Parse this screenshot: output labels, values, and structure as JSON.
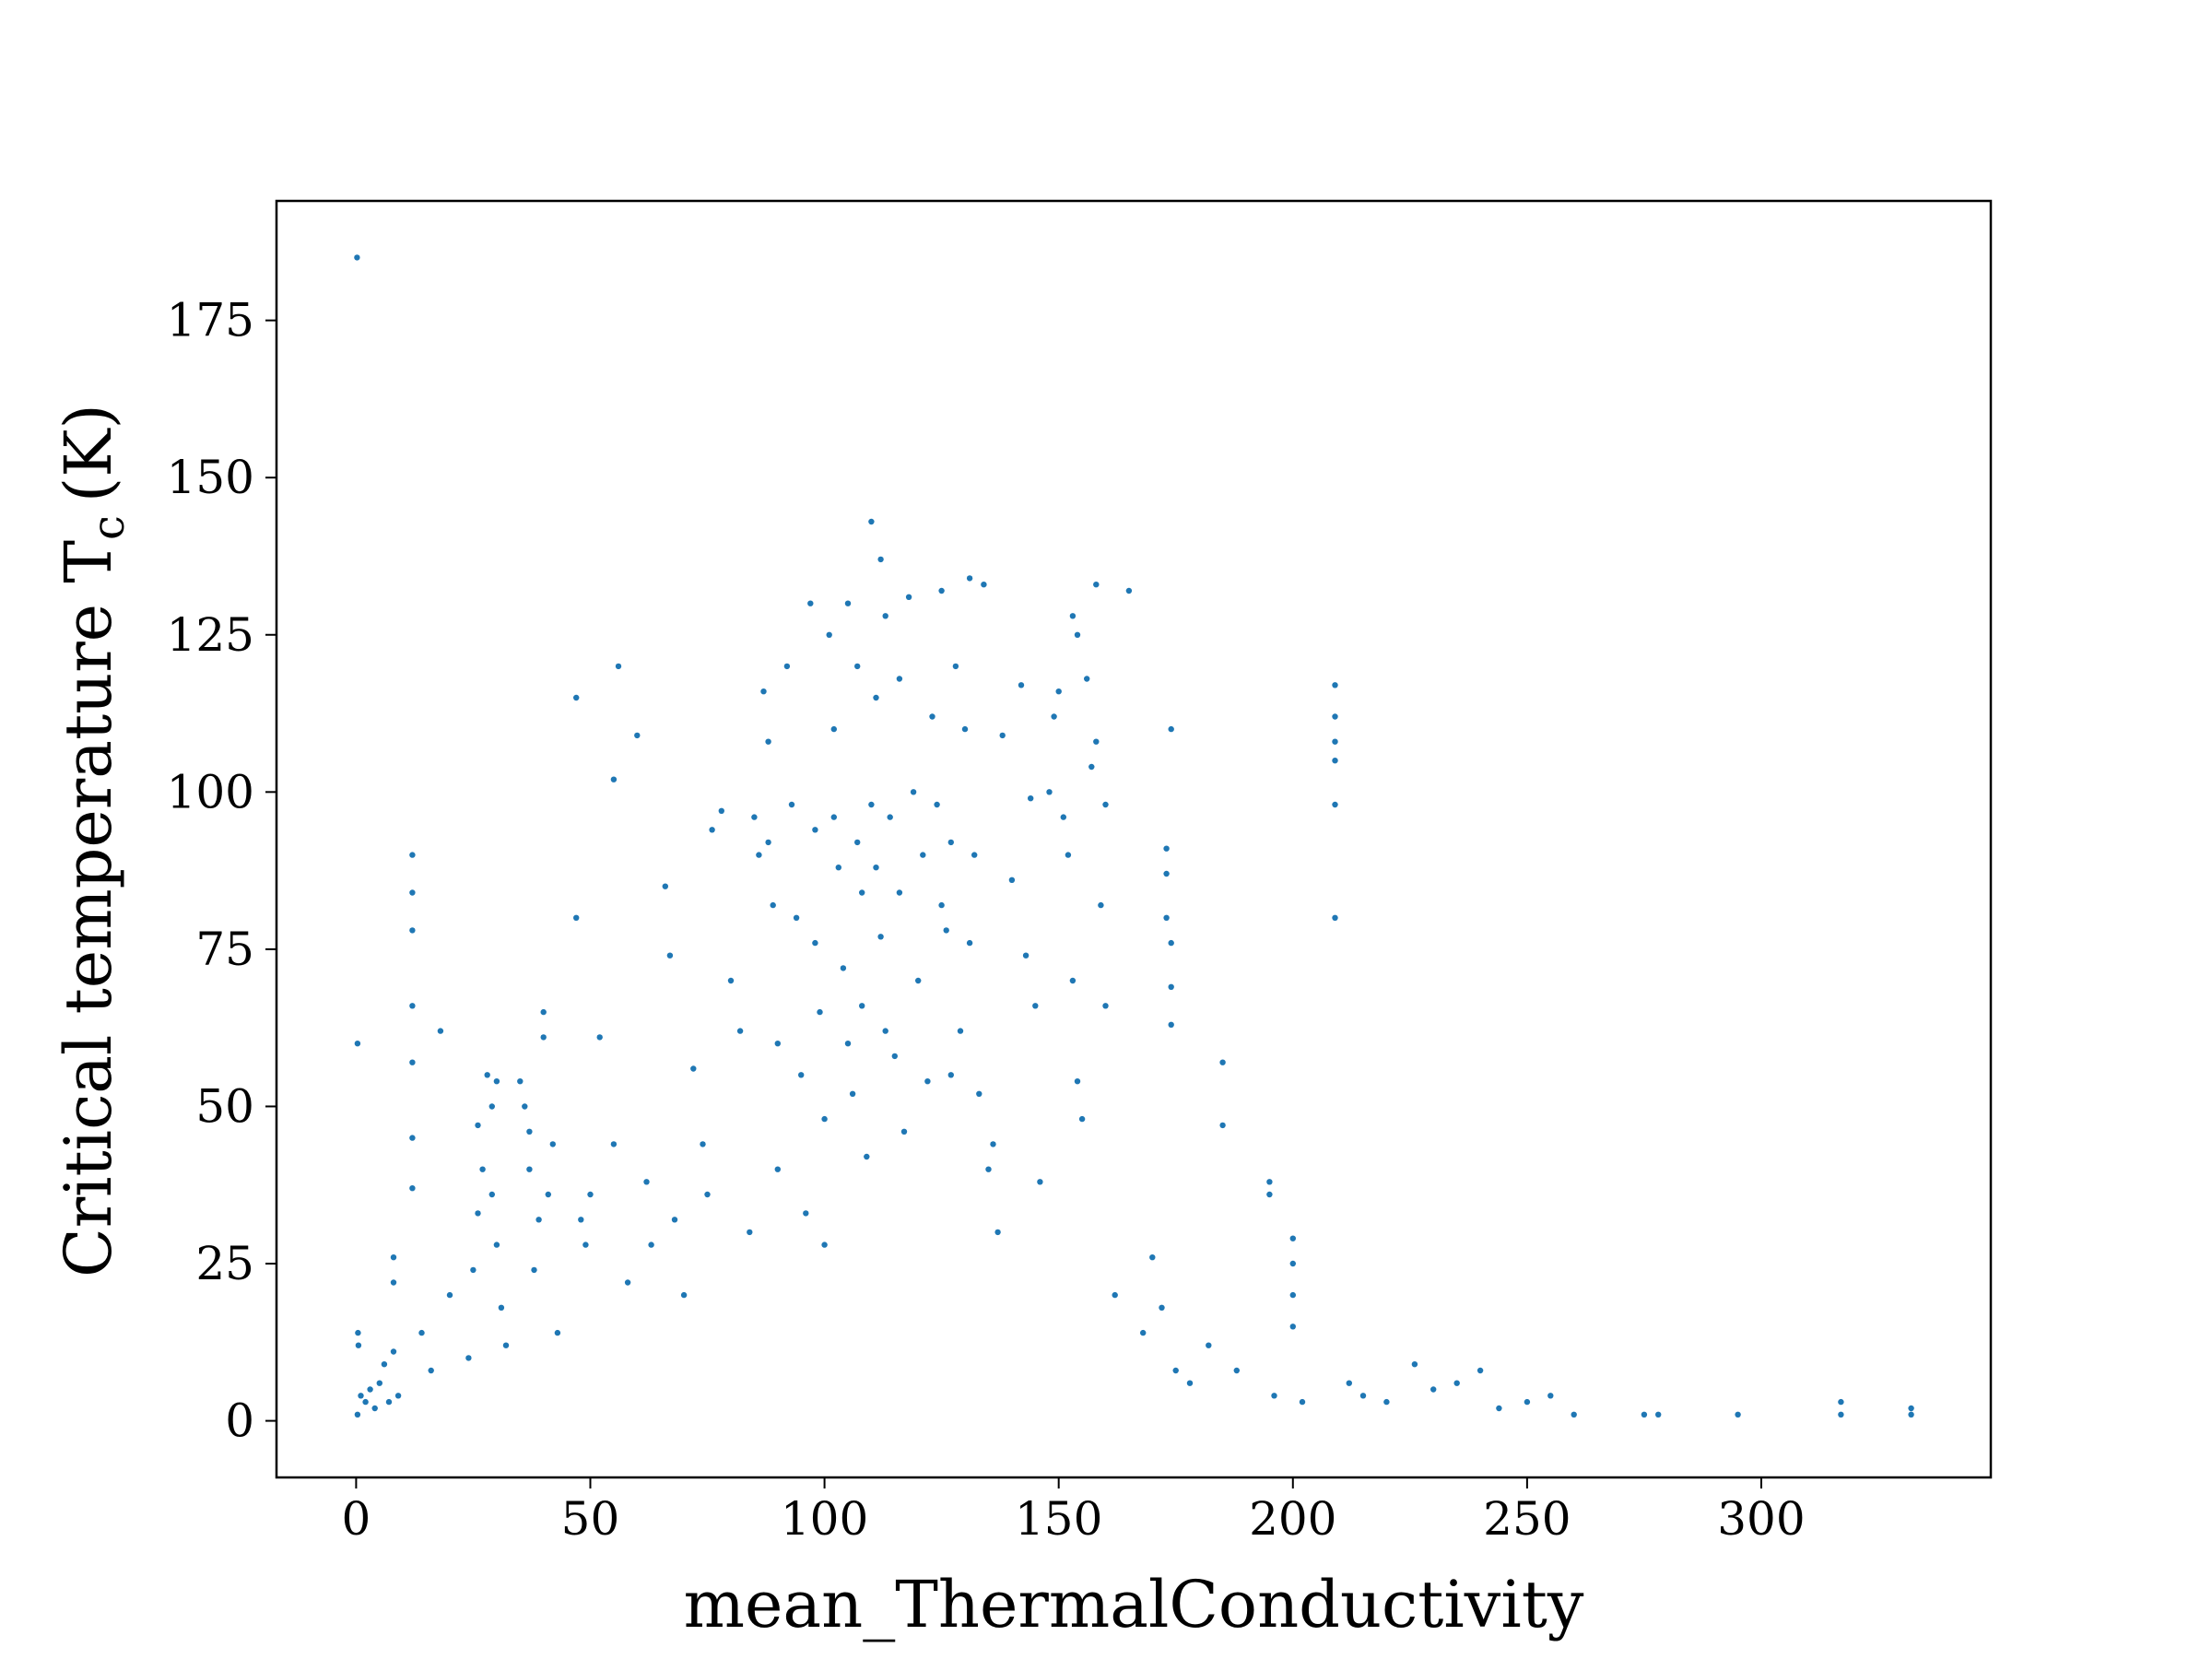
{
  "chart_data": {
    "type": "scatter",
    "title": "",
    "xlabel": "mean_ThermalConductivity",
    "ylabel": "Critical temperature T",
    "ylabel_subscript": "c",
    "ylabel_suffix": "(K)",
    "xlim": [
      -17,
      349
    ],
    "ylim": [
      -9,
      194
    ],
    "xticks": [
      0,
      50,
      100,
      150,
      200,
      250,
      300
    ],
    "yticks": [
      0,
      25,
      50,
      75,
      100,
      125,
      150,
      175
    ],
    "grid": false,
    "legend": "none",
    "marker_color": "#1f77b4",
    "series": [
      {
        "points": [
          [
            0.2,
            185
          ],
          [
            0.3,
            60
          ],
          [
            0.4,
            14
          ],
          [
            0.5,
            12
          ],
          [
            0.3,
            1
          ],
          [
            1.0,
            4
          ],
          [
            2.0,
            3
          ],
          [
            3,
            5
          ],
          [
            4,
            2
          ],
          [
            5,
            6
          ],
          [
            6,
            9
          ],
          [
            7,
            3
          ],
          [
            8,
            11
          ],
          [
            9,
            4
          ],
          [
            12,
            90
          ],
          [
            12,
            84
          ],
          [
            12,
            78
          ],
          [
            12,
            66
          ],
          [
            12,
            57
          ],
          [
            12,
            45
          ],
          [
            12,
            37
          ],
          [
            8,
            26
          ],
          [
            8,
            22
          ],
          [
            14,
            14
          ],
          [
            16,
            8
          ],
          [
            18,
            62
          ],
          [
            20,
            20
          ],
          [
            24,
            10
          ],
          [
            25,
            24
          ],
          [
            26,
            33
          ],
          [
            26,
            47
          ],
          [
            27,
            40
          ],
          [
            28,
            55
          ],
          [
            29,
            50
          ],
          [
            29,
            36
          ],
          [
            30,
            28
          ],
          [
            30,
            54
          ],
          [
            31,
            18
          ],
          [
            32,
            12
          ],
          [
            35,
            54
          ],
          [
            36,
            50
          ],
          [
            37,
            46
          ],
          [
            37,
            40
          ],
          [
            38,
            24
          ],
          [
            39,
            32
          ],
          [
            40,
            61
          ],
          [
            40,
            65
          ],
          [
            41,
            36
          ],
          [
            42,
            44
          ],
          [
            43,
            14
          ],
          [
            47,
            115
          ],
          [
            47,
            80
          ],
          [
            48,
            32
          ],
          [
            49,
            28
          ],
          [
            50,
            36
          ],
          [
            52,
            61
          ],
          [
            55,
            44
          ],
          [
            56,
            120
          ],
          [
            55,
            102
          ],
          [
            60,
            109
          ],
          [
            58,
            22
          ],
          [
            62,
            38
          ],
          [
            63,
            28
          ],
          [
            66,
            85
          ],
          [
            67,
            74
          ],
          [
            68,
            32
          ],
          [
            70,
            20
          ],
          [
            72,
            56
          ],
          [
            74,
            44
          ],
          [
            75,
            36
          ],
          [
            76,
            94
          ],
          [
            78,
            97
          ],
          [
            80,
            70
          ],
          [
            82,
            62
          ],
          [
            84,
            30
          ],
          [
            85,
            96
          ],
          [
            86,
            90
          ],
          [
            87,
            116
          ],
          [
            88,
            108
          ],
          [
            88,
            92
          ],
          [
            89,
            82
          ],
          [
            90,
            60
          ],
          [
            90,
            40
          ],
          [
            92,
            120
          ],
          [
            93,
            98
          ],
          [
            94,
            80
          ],
          [
            95,
            55
          ],
          [
            96,
            33
          ],
          [
            97,
            130
          ],
          [
            98,
            94
          ],
          [
            98,
            76
          ],
          [
            99,
            65
          ],
          [
            100,
            48
          ],
          [
            100,
            28
          ],
          [
            101,
            125
          ],
          [
            102,
            110
          ],
          [
            102,
            96
          ],
          [
            103,
            88
          ],
          [
            104,
            72
          ],
          [
            105,
            130
          ],
          [
            105,
            60
          ],
          [
            106,
            52
          ],
          [
            107,
            120
          ],
          [
            107,
            92
          ],
          [
            108,
            84
          ],
          [
            108,
            66
          ],
          [
            109,
            42
          ],
          [
            110,
            143
          ],
          [
            110,
            98
          ],
          [
            111,
            115
          ],
          [
            111,
            88
          ],
          [
            112,
            137
          ],
          [
            112,
            77
          ],
          [
            113,
            128
          ],
          [
            113,
            62
          ],
          [
            114,
            96
          ],
          [
            115,
            58
          ],
          [
            116,
            118
          ],
          [
            116,
            84
          ],
          [
            117,
            46
          ],
          [
            118,
            131
          ],
          [
            119,
            100
          ],
          [
            120,
            70
          ],
          [
            121,
            90
          ],
          [
            122,
            54
          ],
          [
            123,
            112
          ],
          [
            124,
            98
          ],
          [
            125,
            132
          ],
          [
            125,
            82
          ],
          [
            126,
            78
          ],
          [
            127,
            92
          ],
          [
            127,
            55
          ],
          [
            128,
            120
          ],
          [
            129,
            62
          ],
          [
            130,
            110
          ],
          [
            131,
            134
          ],
          [
            131,
            76
          ],
          [
            132,
            90
          ],
          [
            133,
            52
          ],
          [
            134,
            133
          ],
          [
            135,
            40
          ],
          [
            136,
            44
          ],
          [
            137,
            30
          ],
          [
            138,
            109
          ],
          [
            140,
            86
          ],
          [
            142,
            117
          ],
          [
            143,
            74
          ],
          [
            144,
            99
          ],
          [
            145,
            66
          ],
          [
            146,
            38
          ],
          [
            148,
            100
          ],
          [
            149,
            112
          ],
          [
            150,
            116
          ],
          [
            151,
            96
          ],
          [
            152,
            90
          ],
          [
            153,
            128
          ],
          [
            153,
            70
          ],
          [
            154,
            125
          ],
          [
            154,
            54
          ],
          [
            155,
            48
          ],
          [
            156,
            118
          ],
          [
            157,
            104
          ],
          [
            158,
            133
          ],
          [
            158,
            108
          ],
          [
            159,
            82
          ],
          [
            160,
            98
          ],
          [
            160,
            66
          ],
          [
            162,
            20
          ],
          [
            165,
            132
          ],
          [
            168,
            14
          ],
          [
            170,
            26
          ],
          [
            172,
            18
          ],
          [
            173,
            91
          ],
          [
            173,
            87
          ],
          [
            173,
            80
          ],
          [
            174,
            76
          ],
          [
            174,
            69
          ],
          [
            174,
            63
          ],
          [
            174,
            110
          ],
          [
            175,
            8
          ],
          [
            178,
            6
          ],
          [
            182,
            12
          ],
          [
            185,
            57
          ],
          [
            185,
            47
          ],
          [
            188,
            8
          ],
          [
            195,
            38
          ],
          [
            195,
            36
          ],
          [
            196,
            4
          ],
          [
            200,
            29
          ],
          [
            200,
            25
          ],
          [
            200,
            20
          ],
          [
            200,
            15
          ],
          [
            202,
            3
          ],
          [
            209,
            117
          ],
          [
            209,
            112
          ],
          [
            209,
            108
          ],
          [
            209,
            105
          ],
          [
            209,
            98
          ],
          [
            209,
            80
          ],
          [
            212,
            6
          ],
          [
            215,
            4
          ],
          [
            220,
            3
          ],
          [
            226,
            9
          ],
          [
            230,
            5
          ],
          [
            235,
            6
          ],
          [
            240,
            8
          ],
          [
            244,
            2
          ],
          [
            250,
            3
          ],
          [
            255,
            4
          ],
          [
            260,
            1
          ],
          [
            275,
            1
          ],
          [
            278,
            1
          ],
          [
            295,
            1
          ],
          [
            317,
            3
          ],
          [
            317,
            1
          ],
          [
            332,
            2
          ],
          [
            332,
            1
          ]
        ]
      }
    ]
  }
}
